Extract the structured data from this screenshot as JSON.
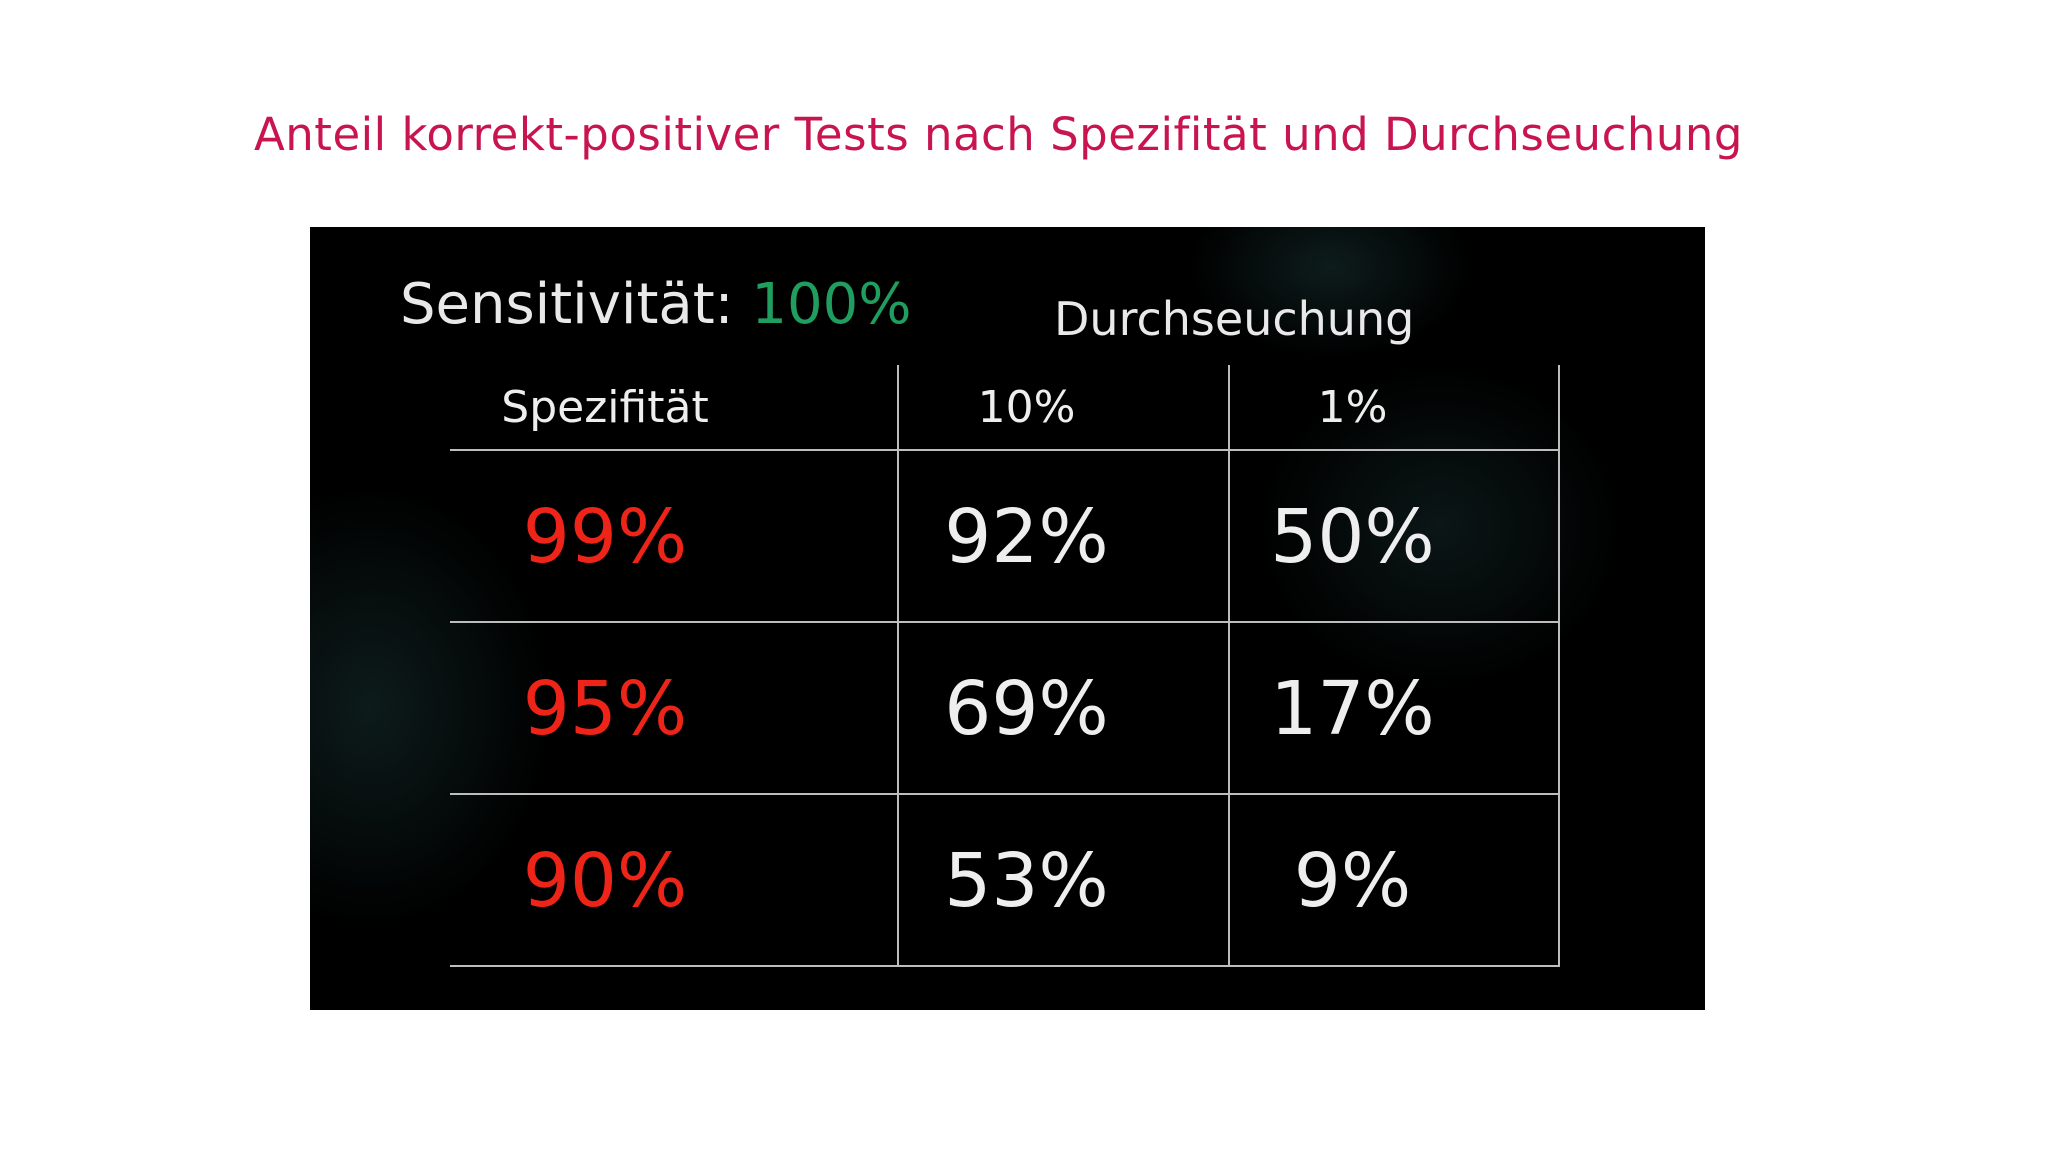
{
  "page": {
    "title": "Anteil korrekt-positiver Tests nach Spezifität und Durchseuchung"
  },
  "panel": {
    "sensitivity_label": "Sensitivität: ",
    "sensitivity_value": "100%",
    "durchseuchung_label": "Durchseuchung"
  },
  "table": {
    "headers": [
      "Spezifität",
      "10%",
      "1%"
    ],
    "rows": [
      {
        "specificity": "99%",
        "p10": "92%",
        "p1": "50%"
      },
      {
        "specificity": "95%",
        "p10": "69%",
        "p1": "17%"
      },
      {
        "specificity": "90%",
        "p10": "53%",
        "p1": "9%"
      }
    ]
  },
  "colors": {
    "title": "#c8154f",
    "background_panel": "#000000",
    "sensitivity_value": "#1f9e5f",
    "specificity_values": "#ee2418",
    "cell_text": "#eeeeee",
    "grid_lines": "#bdbdbd"
  }
}
